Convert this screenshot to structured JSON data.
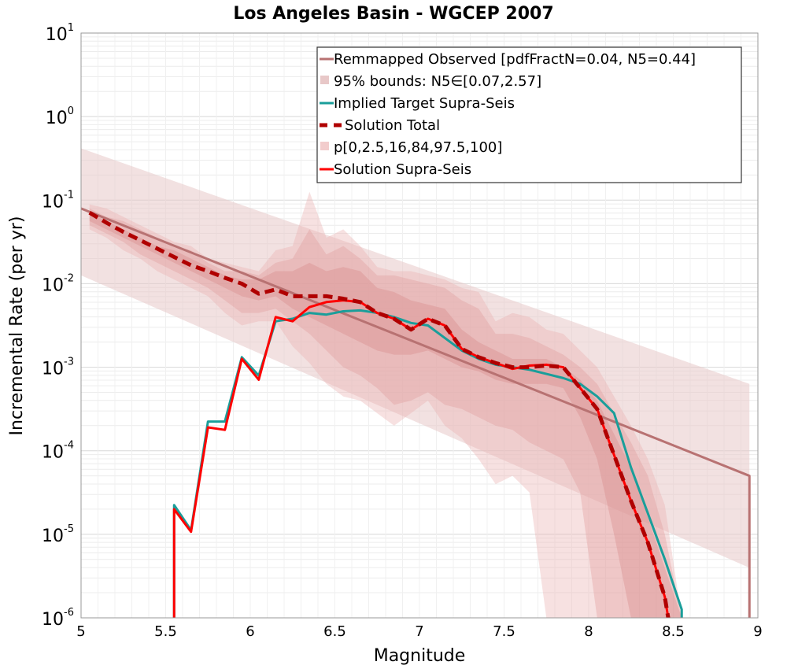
{
  "chart_data": {
    "type": "line",
    "title": "Los Angeles Basin - WGCEP 2007",
    "xlabel": "Magnitude",
    "ylabel": "Incremental Rate (per yr)",
    "xlim": [
      5,
      9
    ],
    "ylim_log10": [
      -6,
      1
    ],
    "y_scale": "log",
    "grid": true,
    "legend_position": "top-right",
    "x_ticks": [
      "5",
      "5.5",
      "6",
      "6.5",
      "7",
      "7.5",
      "8",
      "8.5",
      "9"
    ],
    "x_tick_values": [
      5,
      5.5,
      6,
      6.5,
      7,
      7.5,
      8,
      8.5,
      9
    ],
    "y_ticks": [
      {
        "base": "10",
        "exp": "1",
        "value": 1
      },
      {
        "base": "10",
        "exp": "0",
        "value": 0
      },
      {
        "base": "10",
        "exp": "-1",
        "value": -1
      },
      {
        "base": "10",
        "exp": "-2",
        "value": -2
      },
      {
        "base": "10",
        "exp": "-3",
        "value": -3
      },
      {
        "base": "10",
        "exp": "-4",
        "value": -4
      },
      {
        "base": "10",
        "exp": "-5",
        "value": -5
      },
      {
        "base": "10",
        "exp": "-6",
        "value": -6
      }
    ],
    "colors": {
      "observed": "#b87272",
      "target": "#1a9e9a",
      "total": "#b00000",
      "supra": "#ff0000",
      "band_light": "#f0d6d6",
      "band_pct": "#e89898"
    },
    "legend": [
      {
        "label": "Remmapped Observed [pdfFractN=0.04, N5=0.44]",
        "kind": "line",
        "color": "#b87272"
      },
      {
        "label": "95% bounds: N5∈[0.07,2.57]",
        "kind": "box",
        "color": "#e8c8c8"
      },
      {
        "label": "Implied Target Supra-Seis",
        "kind": "line",
        "color": "#1a9e9a"
      },
      {
        "label": "Solution Total",
        "kind": "dash",
        "color": "#b00000"
      },
      {
        "label": "p[0,2.5,16,84,97.5,100]",
        "kind": "box",
        "color": "#f2cccc"
      },
      {
        "label": "Solution Supra-Seis",
        "kind": "line",
        "color": "#ff0000"
      }
    ],
    "series": [
      {
        "name": "Remmapped Observed [pdfFractN=0.04, N5=0.44]",
        "x": [
          5.0,
          8.95,
          8.95
        ],
        "log10y": [
          -1.1,
          -4.3,
          -6.0
        ]
      },
      {
        "name": "95% bounds: N5∈[0.07,2.57]",
        "band": true,
        "x": [
          5.0,
          8.95,
          8.95
        ],
        "log10_lower": [
          -1.9,
          -5.4,
          -6.0
        ],
        "log10_upper": [
          -0.38,
          -3.2,
          -6.0
        ]
      },
      {
        "name": "p 0-100",
        "band": true,
        "x": [
          5.05,
          5.15,
          5.25,
          5.35,
          5.45,
          5.55,
          5.65,
          5.75,
          5.85,
          5.95,
          6.05,
          6.15,
          6.25,
          6.35,
          6.45,
          6.55,
          6.65,
          6.75,
          6.85,
          6.95,
          7.05,
          7.15,
          7.25,
          7.35,
          7.45,
          7.55,
          7.65,
          7.75,
          7.85,
          7.95,
          8.05,
          8.15,
          8.25,
          8.35,
          8.45,
          8.55
        ],
        "log10_lower": [
          -1.35,
          -1.45,
          -1.6,
          -1.7,
          -1.85,
          -1.95,
          -2.05,
          -2.15,
          -2.35,
          -2.5,
          -2.45,
          -2.45,
          -2.75,
          -2.95,
          -3.2,
          -3.35,
          -3.4,
          -3.55,
          -3.7,
          -3.55,
          -3.4,
          -3.7,
          -3.85,
          -4.1,
          -4.4,
          -4.3,
          -4.5,
          -6.0,
          -6.0,
          -6.0,
          -6.0,
          -6.0,
          -6.0,
          -6.0,
          -6.0,
          -6.0
        ],
        "log10_upper": [
          -1.05,
          -1.1,
          -1.2,
          -1.3,
          -1.4,
          -1.5,
          -1.55,
          -1.7,
          -1.75,
          -1.8,
          -1.85,
          -1.6,
          -1.55,
          -0.9,
          -1.45,
          -1.35,
          -1.55,
          -1.8,
          -1.85,
          -1.85,
          -1.9,
          -1.95,
          -2.05,
          -2.1,
          -2.45,
          -2.35,
          -2.4,
          -2.55,
          -2.6,
          -2.8,
          -3.0,
          -3.35,
          -3.7,
          -4.1,
          -4.65,
          -6.0
        ]
      },
      {
        "name": "p 2.5-97.5",
        "band": true,
        "x": [
          5.05,
          5.15,
          5.25,
          5.35,
          5.45,
          5.55,
          5.65,
          5.75,
          5.85,
          5.95,
          6.05,
          6.15,
          6.25,
          6.35,
          6.45,
          6.55,
          6.65,
          6.75,
          6.85,
          6.95,
          7.05,
          7.15,
          7.25,
          7.35,
          7.45,
          7.55,
          7.65,
          7.75,
          7.85,
          7.95,
          8.05,
          8.15,
          8.25,
          8.35,
          8.45,
          8.55
        ],
        "log10_lower": [
          -1.3,
          -1.4,
          -1.5,
          -1.65,
          -1.75,
          -1.85,
          -1.95,
          -2.05,
          -2.2,
          -2.35,
          -2.35,
          -2.3,
          -2.45,
          -2.6,
          -2.8,
          -3.0,
          -3.1,
          -3.25,
          -3.45,
          -3.4,
          -3.3,
          -3.45,
          -3.5,
          -3.6,
          -3.7,
          -3.75,
          -3.9,
          -4.0,
          -4.1,
          -4.5,
          -6.0,
          -6.0,
          -6.0,
          -6.0,
          -6.0,
          -6.0
        ],
        "log10_upper": [
          -1.1,
          -1.2,
          -1.25,
          -1.35,
          -1.45,
          -1.55,
          -1.6,
          -1.75,
          -1.85,
          -1.85,
          -1.9,
          -1.75,
          -1.7,
          -1.35,
          -1.65,
          -1.55,
          -1.7,
          -1.9,
          -1.9,
          -1.95,
          -2.0,
          -2.05,
          -2.2,
          -2.3,
          -2.6,
          -2.6,
          -2.65,
          -2.75,
          -2.85,
          -3.0,
          -3.2,
          -3.55,
          -3.9,
          -4.3,
          -5.0,
          -6.0
        ]
      },
      {
        "name": "p 16-84",
        "band": true,
        "x": [
          5.05,
          5.15,
          5.25,
          5.35,
          5.45,
          5.55,
          5.65,
          5.75,
          5.85,
          5.95,
          6.05,
          6.15,
          6.25,
          6.35,
          6.45,
          6.55,
          6.65,
          6.75,
          6.85,
          6.95,
          7.05,
          7.15,
          7.25,
          7.35,
          7.45,
          7.55,
          7.65,
          7.75,
          7.85,
          7.95,
          8.05,
          8.15,
          8.25,
          8.35,
          8.45,
          8.55
        ],
        "log10_lower": [
          -1.25,
          -1.35,
          -1.45,
          -1.55,
          -1.65,
          -1.75,
          -1.85,
          -1.95,
          -2.05,
          -2.15,
          -2.2,
          -2.15,
          -2.3,
          -2.4,
          -2.5,
          -2.6,
          -2.7,
          -2.8,
          -2.85,
          -2.85,
          -2.8,
          -2.9,
          -3.0,
          -3.05,
          -3.15,
          -3.2,
          -3.2,
          -3.2,
          -3.25,
          -3.6,
          -4.1,
          -5.0,
          -6.0,
          -6.0,
          -6.0,
          -6.0
        ],
        "log10_upper": [
          -1.15,
          -1.25,
          -1.35,
          -1.45,
          -1.55,
          -1.6,
          -1.7,
          -1.8,
          -1.9,
          -1.95,
          -1.95,
          -1.85,
          -1.85,
          -1.75,
          -1.85,
          -1.8,
          -1.85,
          -2.05,
          -2.1,
          -2.2,
          -2.25,
          -2.3,
          -2.55,
          -2.7,
          -2.8,
          -2.9,
          -2.9,
          -2.9,
          -3.0,
          -3.15,
          -3.4,
          -3.8,
          -4.2,
          -4.8,
          -5.4,
          -6.0
        ]
      },
      {
        "name": "Implied Target Supra-Seis",
        "x": [
          5.55,
          5.55,
          5.65,
          5.75,
          5.85,
          5.95,
          6.05,
          6.15,
          6.25,
          6.35,
          6.45,
          6.55,
          6.65,
          6.75,
          6.85,
          6.95,
          7.05,
          7.15,
          7.25,
          7.35,
          7.45,
          7.55,
          7.65,
          7.75,
          7.85,
          7.95,
          8.05,
          8.15,
          8.25,
          8.35,
          8.45,
          8.55,
          8.55
        ],
        "log10y": [
          -6.0,
          -4.65,
          -4.95,
          -3.65,
          -3.65,
          -2.88,
          -3.1,
          -2.45,
          -2.42,
          -2.35,
          -2.37,
          -2.33,
          -2.32,
          -2.35,
          -2.4,
          -2.47,
          -2.5,
          -2.65,
          -2.8,
          -2.9,
          -2.97,
          -3.0,
          -3.03,
          -3.08,
          -3.13,
          -3.2,
          -3.35,
          -3.55,
          -4.2,
          -4.75,
          -5.3,
          -5.9,
          -6.0
        ]
      },
      {
        "name": "Solution Total",
        "x": [
          5.05,
          5.15,
          5.25,
          5.35,
          5.45,
          5.55,
          5.65,
          5.75,
          5.85,
          5.95,
          6.05,
          6.15,
          6.25,
          6.35,
          6.45,
          6.55,
          6.65,
          6.75,
          6.85,
          6.95,
          7.05,
          7.15,
          7.25,
          7.35,
          7.45,
          7.55,
          7.65,
          7.75,
          7.85,
          7.95,
          8.05,
          8.15,
          8.25,
          8.35,
          8.45,
          8.47
        ],
        "log10y": [
          -1.15,
          -1.27,
          -1.38,
          -1.48,
          -1.58,
          -1.68,
          -1.78,
          -1.85,
          -1.93,
          -2.0,
          -2.12,
          -2.07,
          -2.15,
          -2.15,
          -2.15,
          -2.18,
          -2.22,
          -2.35,
          -2.42,
          -2.55,
          -2.42,
          -2.5,
          -2.78,
          -2.88,
          -2.95,
          -3.0,
          -3.0,
          -2.98,
          -3.0,
          -3.25,
          -3.5,
          -4.05,
          -4.6,
          -5.1,
          -5.75,
          -6.0
        ]
      },
      {
        "name": "Solution Supra-Seis",
        "x": [
          5.55,
          5.55,
          5.65,
          5.75,
          5.85,
          5.95,
          6.05,
          6.15,
          6.25,
          6.35,
          6.45,
          6.55,
          6.65,
          6.75,
          6.85,
          6.95,
          7.05,
          7.15,
          7.25,
          7.35,
          7.45,
          7.55,
          7.65,
          7.75,
          7.85,
          7.95,
          8.05,
          8.15,
          8.25,
          8.35,
          8.45,
          8.47
        ],
        "log10y": [
          -6.0,
          -4.7,
          -4.97,
          -3.72,
          -3.75,
          -2.9,
          -3.15,
          -2.4,
          -2.45,
          -2.28,
          -2.22,
          -2.2,
          -2.22,
          -2.35,
          -2.42,
          -2.55,
          -2.42,
          -2.5,
          -2.78,
          -2.88,
          -2.95,
          -3.02,
          -2.98,
          -2.97,
          -3.0,
          -3.25,
          -3.5,
          -4.05,
          -4.6,
          -5.1,
          -5.75,
          -6.0
        ]
      }
    ]
  }
}
